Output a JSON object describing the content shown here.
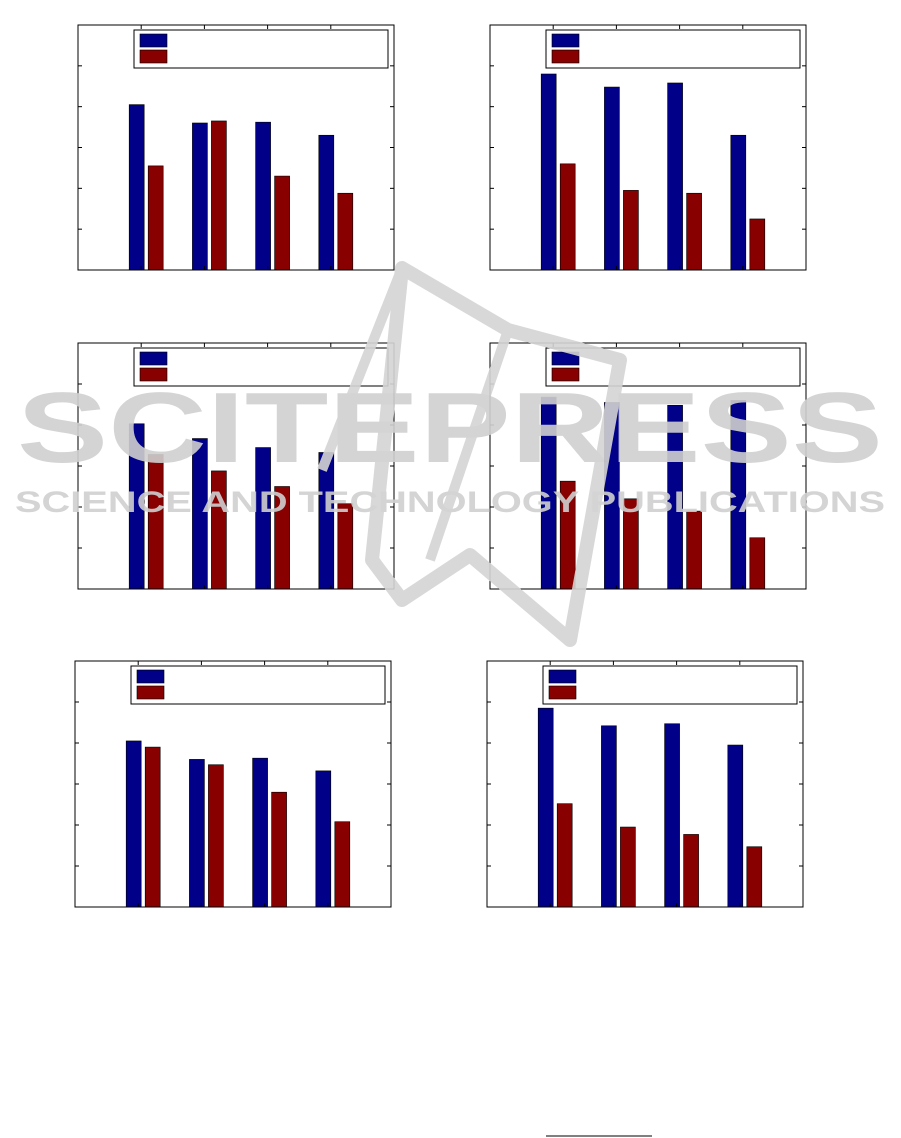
{
  "colors": {
    "series_a": "#000088",
    "series_b": "#880000",
    "axis": "#000000",
    "watermark": "#d0d0d0"
  },
  "watermark": {
    "title": "SCITEPRESS",
    "subtitle": "SCIENCE AND TECHNOLOGY PUBLICATIONS"
  },
  "chart_data": [
    {
      "type": "bar",
      "ylim": [
        0,
        6
      ],
      "grid": false,
      "legend": "top",
      "series": [
        {
          "values": [
            4.05,
            3.6,
            3.62,
            3.3
          ]
        },
        {
          "values": [
            2.55,
            3.65,
            2.3,
            1.88
          ]
        }
      ]
    },
    {
      "type": "bar",
      "ylim": [
        0,
        6
      ],
      "grid": false,
      "legend": "top",
      "series": [
        {
          "values": [
            4.8,
            4.48,
            4.58,
            3.3
          ]
        },
        {
          "values": [
            2.6,
            1.95,
            1.88,
            1.25
          ]
        }
      ]
    },
    {
      "type": "bar",
      "ylim": [
        0,
        6
      ],
      "grid": false,
      "legend": "top",
      "series": [
        {
          "values": [
            4.03,
            3.67,
            3.45,
            3.33
          ]
        },
        {
          "values": [
            3.28,
            2.88,
            2.5,
            2.08
          ]
        }
      ]
    },
    {
      "type": "bar",
      "ylim": [
        0,
        6
      ],
      "grid": false,
      "legend": "top",
      "series": [
        {
          "values": [
            4.68,
            4.55,
            4.48,
            4.6
          ]
        },
        {
          "values": [
            2.63,
            2.2,
            1.9,
            1.25
          ]
        }
      ]
    },
    {
      "type": "bar",
      "ylim": [
        0,
        6
      ],
      "grid": false,
      "legend": "top",
      "series": [
        {
          "values": [
            4.05,
            3.6,
            3.63,
            3.32
          ]
        },
        {
          "values": [
            3.9,
            3.47,
            2.8,
            2.08
          ]
        }
      ]
    },
    {
      "type": "bar",
      "ylim": [
        0,
        6
      ],
      "grid": false,
      "legend": "top",
      "series": [
        {
          "values": [
            4.85,
            4.42,
            4.47,
            3.95
          ]
        },
        {
          "values": [
            2.52,
            1.95,
            1.77,
            1.47
          ]
        }
      ]
    }
  ]
}
